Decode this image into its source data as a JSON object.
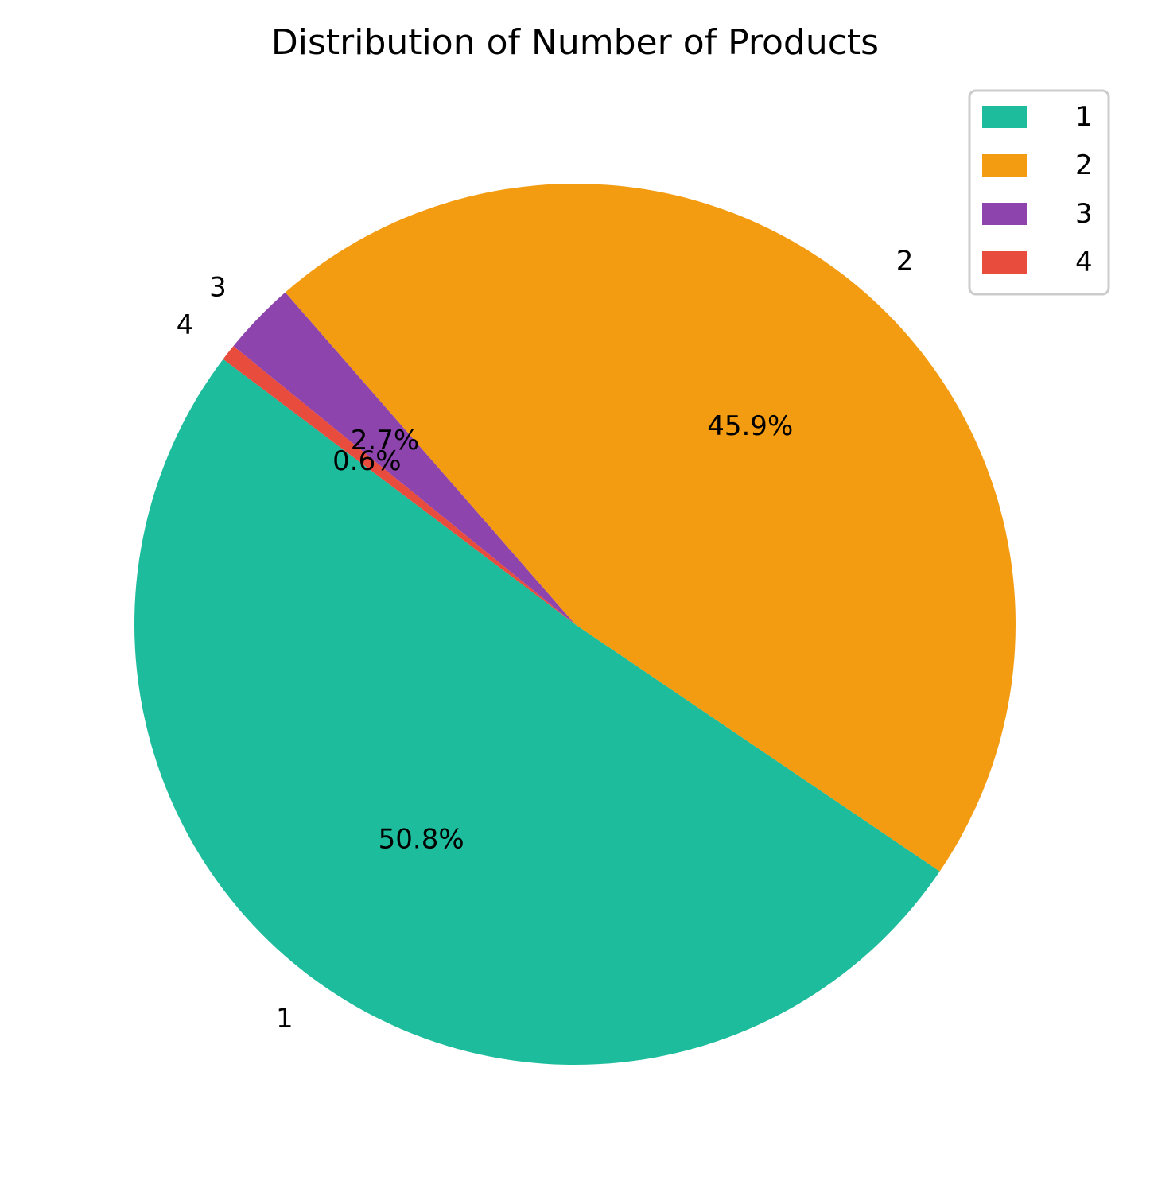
{
  "chart_data": {
    "type": "pie",
    "title": "Distribution of Number of Products",
    "categories": [
      "1",
      "2",
      "3",
      "4"
    ],
    "values": [
      50.8,
      45.9,
      2.7,
      0.6
    ],
    "value_labels": [
      "50.8%",
      "45.9%",
      "2.7%",
      "0.6%"
    ],
    "colors": [
      "#1dbc9c",
      "#f39c12",
      "#8e44ad",
      "#e74c3c"
    ],
    "start_angle_deg": 143,
    "direction": "counterclockwise",
    "legend": {
      "placement": "top-right",
      "entries": [
        "1",
        "2",
        "3",
        "4"
      ]
    }
  }
}
